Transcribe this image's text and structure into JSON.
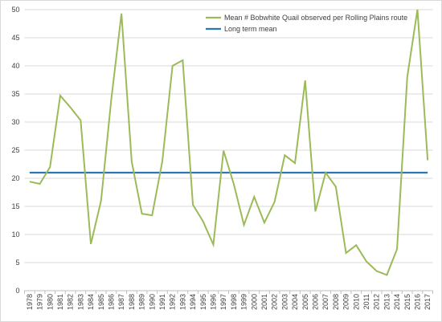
{
  "chart_data": {
    "type": "line",
    "title": "",
    "xlabel": "",
    "ylabel": "",
    "ylim": [
      0,
      50
    ],
    "yticks": [
      0,
      5,
      10,
      15,
      20,
      25,
      30,
      35,
      40,
      45,
      50
    ],
    "grid": "horizontal",
    "legend_position": "top-right",
    "x": [
      "1978",
      "1979",
      "1980",
      "1981",
      "1982",
      "1983",
      "1984",
      "1985",
      "1986",
      "1987",
      "1988",
      "1989",
      "1990",
      "1991",
      "1992",
      "1993",
      "1994",
      "1995",
      "1996",
      "1997",
      "1998",
      "1999",
      "2000",
      "2001",
      "2002",
      "2003",
      "2004",
      "2005",
      "2006",
      "2007",
      "2008",
      "2009",
      "2010",
      "2011",
      "2012",
      "2013",
      "2014",
      "2015",
      "2016",
      "2017"
    ],
    "series": [
      {
        "name": "Mean # Bobwhite Quail observed per Rolling Plains route",
        "color": "#9bbb59",
        "values": [
          19.4,
          19.0,
          22.0,
          34.7,
          32.6,
          30.3,
          8.3,
          16.0,
          34.0,
          49.3,
          23.0,
          13.7,
          13.4,
          23.0,
          40.0,
          41.0,
          15.3,
          12.3,
          8.2,
          24.9,
          19.0,
          11.7,
          16.7,
          12.1,
          15.8,
          24.1,
          22.7,
          37.4,
          14.1,
          21.0,
          18.5,
          6.7,
          8.1,
          5.2,
          3.5,
          2.8,
          7.4,
          38.0,
          50.0,
          23.2
        ]
      },
      {
        "name": "Long term mean",
        "color": "#2e75b6",
        "values": [
          21.0,
          21.0,
          21.0,
          21.0,
          21.0,
          21.0,
          21.0,
          21.0,
          21.0,
          21.0,
          21.0,
          21.0,
          21.0,
          21.0,
          21.0,
          21.0,
          21.0,
          21.0,
          21.0,
          21.0,
          21.0,
          21.0,
          21.0,
          21.0,
          21.0,
          21.0,
          21.0,
          21.0,
          21.0,
          21.0,
          21.0,
          21.0,
          21.0,
          21.0,
          21.0,
          21.0,
          21.0,
          21.0,
          21.0,
          21.0
        ]
      }
    ]
  }
}
